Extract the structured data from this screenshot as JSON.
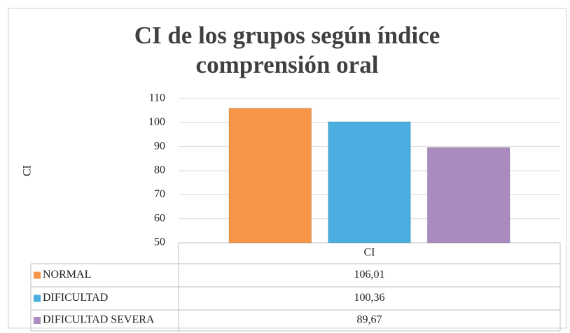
{
  "chart_data": {
    "type": "bar",
    "title": "CI de los grupos según índice comprensión oral",
    "y_label": "CI",
    "categories": [
      "CI"
    ],
    "series": [
      {
        "name": "NORMAL",
        "color": "#f79646",
        "values": [
          106.01
        ],
        "value_labels": [
          "106,01"
        ]
      },
      {
        "name": "DIFICULTAD",
        "color": "#4aaee0",
        "values": [
          100.36
        ],
        "value_labels": [
          "100,36"
        ]
      },
      {
        "name": "DIFICULTAD SEVERA",
        "color": "#a98bbf",
        "values": [
          89.67
        ],
        "value_labels": [
          "89,67"
        ]
      }
    ],
    "ylim": [
      50,
      110
    ],
    "yticks": [
      50,
      60,
      70,
      80,
      90,
      100,
      110
    ],
    "grid": true,
    "data_table": true
  }
}
